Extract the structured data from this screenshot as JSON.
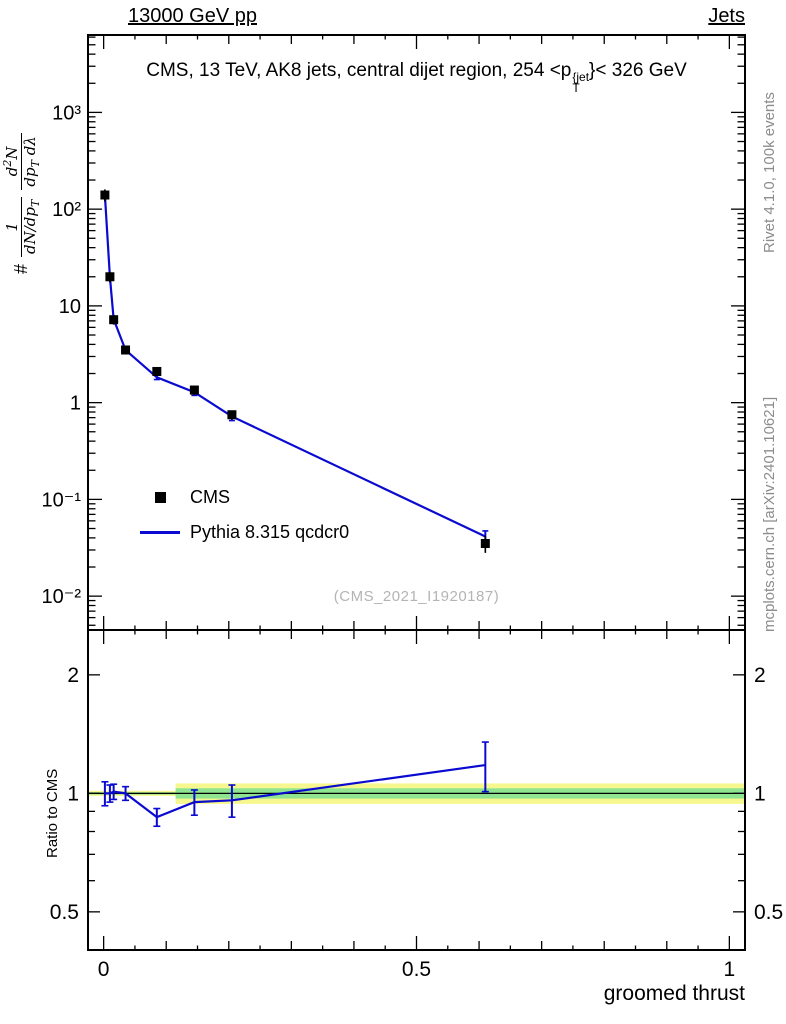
{
  "header": {
    "left": "13000 GeV pp",
    "right": "Jets"
  },
  "title": {
    "a": "CMS, 13 TeV, AK8 jets, central dijet region, 254 <p",
    "sup": "{jet",
    "sub": "T",
    "b": "}< 326 GeV"
  },
  "ylabel": {
    "hash": "#",
    "f1_num": "1",
    "f1_den_a": "dN/dp",
    "f1_den_sub": "T",
    "f2_num_a": "d",
    "f2_num_sup": "2",
    "f2_num_b": "N",
    "f2_den_a": "dp",
    "f2_den_sub": "T",
    "f2_den_b": " dλ"
  },
  "right_texts": {
    "rivet": "Rivet 4.1.0,  100k events",
    "mcplots": "mcplots.cern.ch [arXiv:2401.10621]"
  },
  "legend": {
    "items": [
      {
        "label": "CMS"
      },
      {
        "label": "Pythia 8.315 qcdcr0"
      }
    ]
  },
  "watermark": "(CMS_2021_I1920187)",
  "ratio_label": "Ratio to CMS",
  "xlabel": "groomed thrust",
  "chart_data": {
    "type": "line",
    "title": "CMS, 13 TeV, AK8 jets, central dijet region, 254 < pT^{jet} < 326 GeV",
    "xlabel": "groomed thrust",
    "ylabel": "# 1/(dN/dpT) d2N/(dpT dlambda)",
    "ratio_ylabel": "Ratio to CMS",
    "xlim": [
      -0.025,
      1.025
    ],
    "y_log_range_exp": [
      -2.35,
      3.8
    ],
    "x_ticks": {
      "major": [
        0,
        0.5,
        1
      ],
      "labels": [
        "0",
        "0.5",
        "1"
      ],
      "mid_step": 0.1,
      "minor_step": 0.05
    },
    "y_ticks": {
      "values": [
        1000,
        100,
        10,
        1,
        0.1,
        0.01
      ],
      "labels": [
        "10³",
        "10²",
        "10",
        "1",
        "10⁻¹",
        "10⁻²"
      ]
    },
    "ratio": {
      "ylim": [
        0.4,
        2.6
      ],
      "ticks": [
        2,
        1,
        0.5
      ],
      "tick_labels": [
        "2",
        "1",
        "0.5"
      ],
      "minor_ticks": [
        0.6,
        0.7,
        0.8,
        0.9
      ],
      "ref": 1
    },
    "series": {
      "cms": {
        "name": "CMS",
        "color": "#000000",
        "x": [
          0.002,
          0.01,
          0.016,
          0.035,
          0.085,
          0.145,
          0.205,
          0.61
        ],
        "y": [
          140,
          20,
          7.2,
          3.5,
          2.1,
          1.35,
          0.75,
          0.035
        ],
        "yerr": [
          20,
          2.5,
          0.8,
          0.35,
          0.2,
          0.15,
          0.08,
          0.007
        ]
      },
      "pythia": {
        "name": "Pythia 8.315 qcdcr0",
        "color": "#0a0ad0",
        "ratio": [
          1.0,
          1.0,
          1.01,
          1.0,
          0.87,
          0.95,
          0.96,
          1.18
        ],
        "ratio_err": [
          0.07,
          0.05,
          0.045,
          0.04,
          0.045,
          0.07,
          0.09,
          0.17
        ]
      }
    },
    "bands": [
      {
        "x0": -0.025,
        "x1": 0.115,
        "yellow": [
          0.985,
          1.015
        ],
        "green": [
          0.993,
          1.007
        ]
      },
      {
        "x0": 0.115,
        "x1": 1.025,
        "yellow": [
          0.94,
          1.06
        ],
        "green": [
          0.97,
          1.03
        ]
      }
    ],
    "colors": {
      "band_yellow": "#f7f78f",
      "band_green": "#8fe48f",
      "line": "#0a0ad0",
      "marker": "#000000",
      "ref_line": "#000000"
    }
  }
}
